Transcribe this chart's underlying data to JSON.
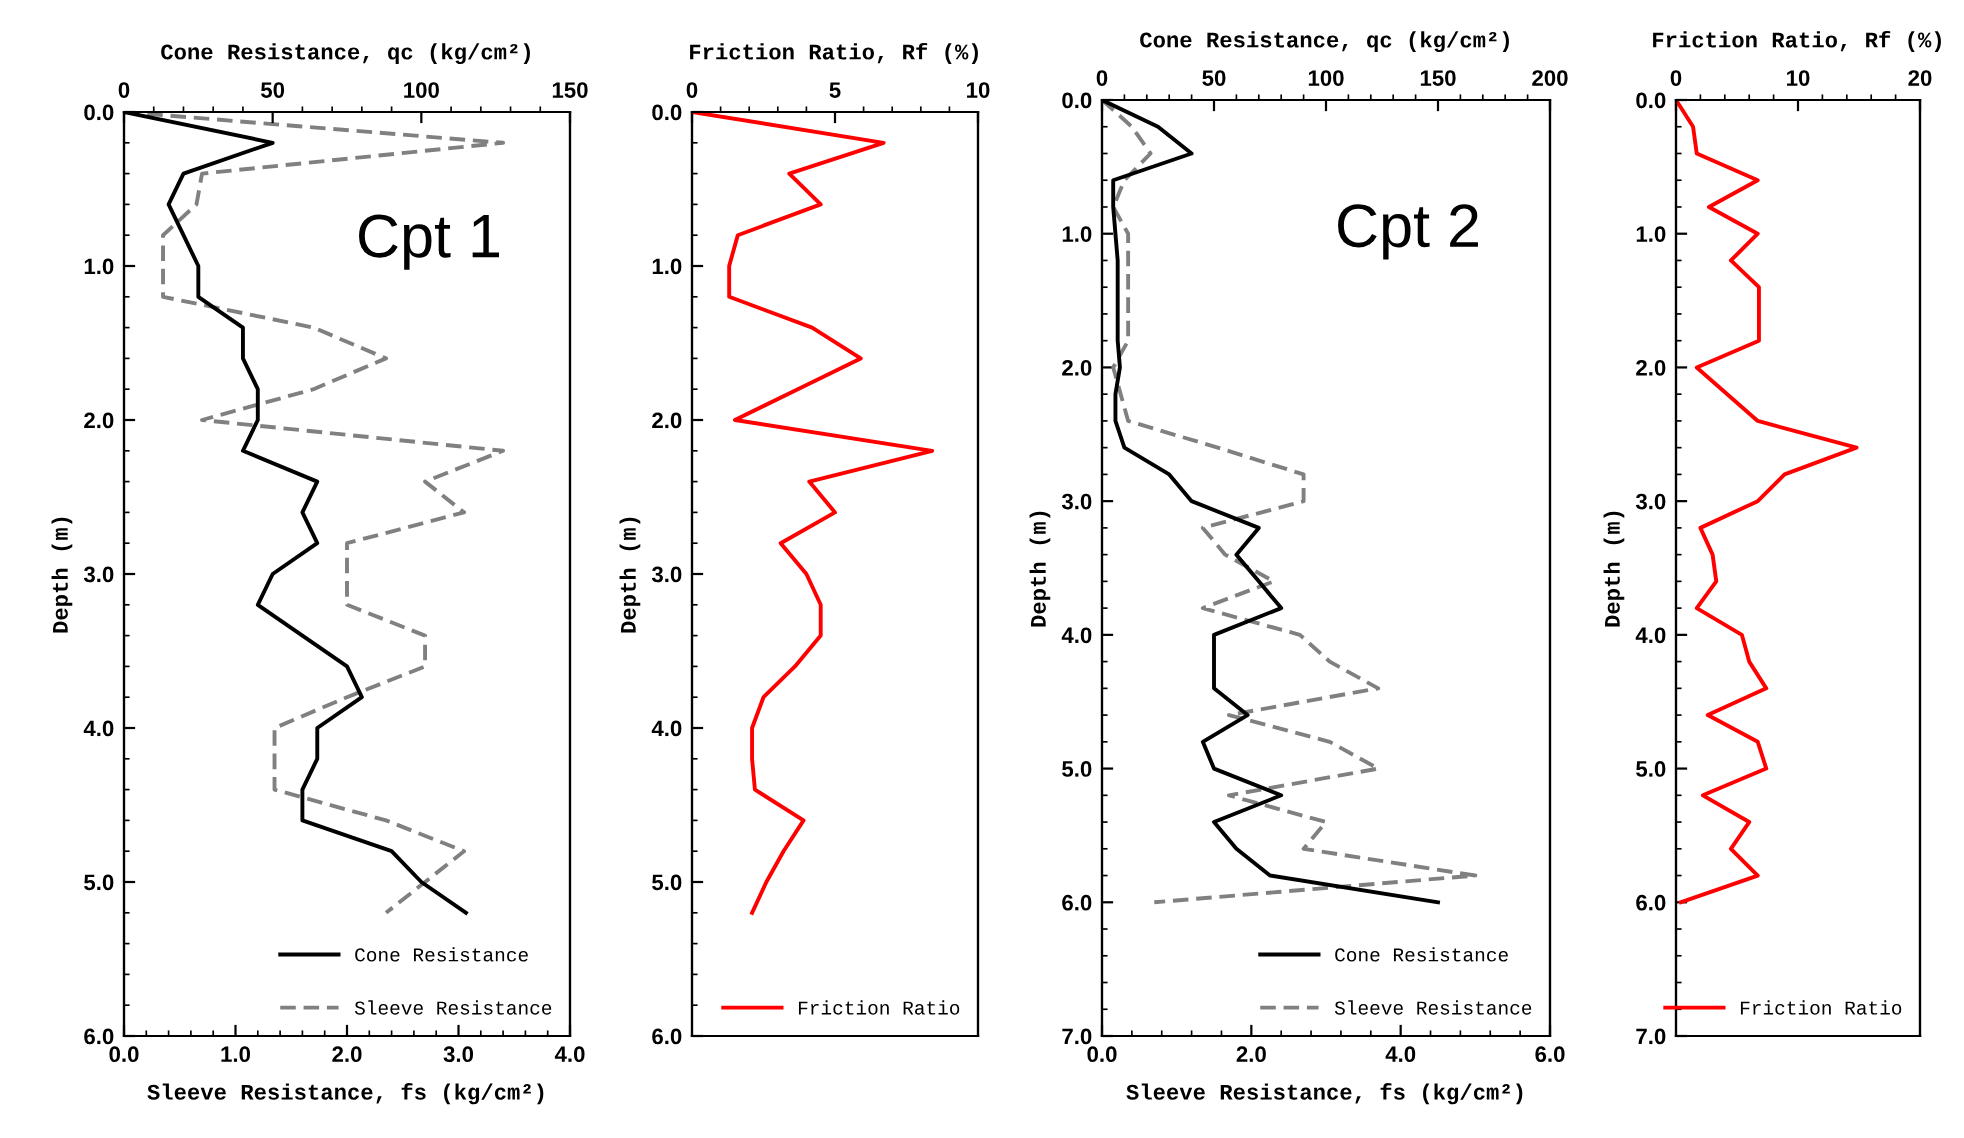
{
  "chart_data": [
    {
      "type": "line",
      "orientation": "horizontal",
      "ylabel": "Depth (m)",
      "xlabel": "Sleeve Resistance, fs (kg/cm²)",
      "x2label": "Cone Resistance, qc (kg/cm²)",
      "annotations": [
        "Cpt 1"
      ],
      "legend": "bottom right",
      "ylim": [
        6,
        0
      ],
      "yticks": [
        {
          "value": 0,
          "label": "0.0"
        },
        {
          "value": 1,
          "label": "1.0"
        },
        {
          "value": 2,
          "label": "2.0"
        },
        {
          "value": 3,
          "label": "3.0"
        },
        {
          "value": 4,
          "label": "4.0"
        },
        {
          "value": 5,
          "label": "5.0"
        },
        {
          "value": 6,
          "label": "6.0"
        }
      ],
      "xlim": [
        0,
        4
      ],
      "xticks": [
        {
          "value": 0,
          "label": "0.0"
        },
        {
          "value": 1,
          "label": "1.0"
        },
        {
          "value": 2,
          "label": "2.0"
        },
        {
          "value": 3,
          "label": "3.0"
        },
        {
          "value": 4,
          "label": "4.0"
        }
      ],
      "x2lim": [
        0,
        150
      ],
      "x2ticks": [
        0,
        50,
        100,
        150
      ],
      "series": [
        {
          "name": "Cone Resistance",
          "color": "#000000",
          "line_style": "solid",
          "axis": "x2",
          "x": [
            0,
            0.2,
            0.4,
            0.6,
            0.8,
            1.0,
            1.2,
            1.4,
            1.6,
            1.8,
            2.0,
            2.2,
            2.4,
            2.6,
            2.8,
            3.0,
            3.2,
            3.4,
            3.6,
            3.8,
            4.0,
            4.2,
            4.4,
            4.6,
            4.8,
            5.0,
            5.2
          ],
          "values": [
            0,
            50,
            20,
            15,
            20,
            25,
            25,
            40,
            40,
            45,
            45,
            40,
            65,
            60,
            65,
            50,
            45,
            60,
            75,
            80,
            65,
            65,
            60,
            60,
            90,
            100,
            115
          ]
        },
        {
          "name": "Sleeve Resistance",
          "color": "#808080",
          "line_style": "dashed",
          "x": [
            0,
            0.2,
            0.4,
            0.6,
            0.8,
            1.0,
            1.2,
            1.4,
            1.6,
            1.8,
            2.0,
            2.2,
            2.4,
            2.6,
            2.8,
            3.0,
            3.2,
            3.4,
            3.6,
            3.8,
            4.0,
            4.2,
            4.4,
            4.6,
            4.8,
            5.0,
            5.2
          ],
          "values": [
            0,
            3.4,
            0.7,
            0.65,
            0.35,
            0.35,
            0.35,
            1.7,
            2.35,
            1.7,
            0.7,
            3.4,
            2.7,
            3.05,
            2.0,
            2.0,
            2.0,
            2.7,
            2.7,
            2.0,
            1.35,
            1.35,
            1.35,
            2.35,
            3.05,
            2.7,
            2.35
          ]
        }
      ]
    },
    {
      "type": "line",
      "orientation": "horizontal",
      "ylabel": "Depth (m)",
      "x2label": "Friction Ratio, Rf (%)",
      "legend": "bottom right",
      "ylim": [
        6,
        0
      ],
      "yticks": [
        {
          "value": 0,
          "label": "0.0"
        },
        {
          "value": 1,
          "label": "1.0"
        },
        {
          "value": 2,
          "label": "2.0"
        },
        {
          "value": 3,
          "label": "3.0"
        },
        {
          "value": 4,
          "label": "4.0"
        },
        {
          "value": 5,
          "label": "5.0"
        },
        {
          "value": 6,
          "label": "6.0"
        }
      ],
      "x2lim": [
        0,
        10
      ],
      "x2ticks": [
        0,
        5,
        10
      ],
      "series": [
        {
          "name": "Friction Ratio",
          "color": "#ff0000",
          "line_style": "solid",
          "axis": "x2",
          "x": [
            0,
            0.2,
            0.4,
            0.6,
            0.8,
            1.0,
            1.2,
            1.4,
            1.6,
            1.8,
            2.0,
            2.2,
            2.4,
            2.6,
            2.8,
            3.0,
            3.2,
            3.4,
            3.6,
            3.8,
            4.0,
            4.2,
            4.4,
            4.6,
            4.8,
            5.0,
            5.2
          ],
          "values": [
            0,
            6.7,
            3.4,
            4.5,
            1.6,
            1.3,
            1.3,
            4.2,
            5.9,
            3.7,
            1.5,
            8.4,
            4.1,
            5.0,
            3.1,
            4.0,
            4.5,
            4.5,
            3.6,
            2.5,
            2.1,
            2.1,
            2.2,
            3.9,
            3.2,
            2.6,
            2.1
          ]
        }
      ]
    },
    {
      "type": "line",
      "orientation": "horizontal",
      "ylabel": "Depth (m)",
      "xlabel": "Sleeve Resistance, fs (kg/cm²)",
      "x2label": "Cone Resistance, qc (kg/cm²)",
      "annotations": [
        "Cpt 2"
      ],
      "legend": "bottom right",
      "ylim": [
        7,
        0
      ],
      "yticks": [
        {
          "value": 0,
          "label": "0.0"
        },
        {
          "value": 1,
          "label": "1.0"
        },
        {
          "value": 2,
          "label": "2.0"
        },
        {
          "value": 3,
          "label": "3.0"
        },
        {
          "value": 4,
          "label": "4.0"
        },
        {
          "value": 5,
          "label": "5.0"
        },
        {
          "value": 6,
          "label": "6.0"
        },
        {
          "value": 7,
          "label": "7.0"
        }
      ],
      "xlim": [
        0,
        6
      ],
      "xticks": [
        {
          "value": 0,
          "label": "0.0"
        },
        {
          "value": 2,
          "label": "2.0"
        },
        {
          "value": 4,
          "label": "4.0"
        },
        {
          "value": 6,
          "label": "6.0"
        }
      ],
      "x2lim": [
        0,
        200
      ],
      "x2ticks": [
        0,
        50,
        100,
        150,
        200
      ],
      "series": [
        {
          "name": "Cone Resistance",
          "color": "#000000",
          "line_style": "solid",
          "axis": "x2",
          "x": [
            0,
            0.2,
            0.4,
            0.6,
            0.8,
            1.0,
            1.2,
            1.4,
            1.6,
            1.8,
            2.0,
            2.2,
            2.4,
            2.6,
            2.8,
            3.0,
            3.2,
            3.4,
            3.6,
            3.8,
            4.0,
            4.2,
            4.4,
            4.6,
            4.8,
            5.0,
            5.2,
            5.4,
            5.6,
            5.8,
            6.0
          ],
          "values": [
            0,
            25,
            40,
            5,
            5,
            6,
            7,
            7,
            7,
            7,
            8,
            6,
            6,
            10,
            30,
            40,
            70,
            60,
            70,
            80,
            50,
            50,
            50,
            65,
            45,
            50,
            80,
            50,
            60,
            75,
            150
          ]
        },
        {
          "name": "Sleeve Resistance",
          "color": "#808080",
          "line_style": "dashed",
          "x": [
            0,
            0.2,
            0.4,
            0.6,
            0.8,
            1.0,
            1.2,
            1.4,
            1.6,
            1.8,
            2.0,
            2.2,
            2.4,
            2.6,
            2.8,
            3.0,
            3.2,
            3.4,
            3.6,
            3.8,
            4.0,
            4.2,
            4.4,
            4.6,
            4.8,
            5.0,
            5.2,
            5.4,
            5.6,
            5.8,
            6.0
          ],
          "values": [
            0,
            0.4,
            0.65,
            0.3,
            0.15,
            0.35,
            0.35,
            0.35,
            0.35,
            0.35,
            0.15,
            0.25,
            0.35,
            1.55,
            2.7,
            2.7,
            1.35,
            1.65,
            2.3,
            1.35,
            2.65,
            3.05,
            3.7,
            1.7,
            3.05,
            3.7,
            1.7,
            3.0,
            2.7,
            5.0,
            0.7
          ]
        }
      ]
    },
    {
      "type": "line",
      "orientation": "horizontal",
      "ylabel": "Depth (m)",
      "x2label": "Friction Ratio, Rf (%)",
      "legend": "bottom right",
      "ylim": [
        7,
        0
      ],
      "yticks": [
        {
          "value": 0,
          "label": "0.0"
        },
        {
          "value": 1,
          "label": "1.0"
        },
        {
          "value": 2,
          "label": "2.0"
        },
        {
          "value": 3,
          "label": "3.0"
        },
        {
          "value": 4,
          "label": "4.0"
        },
        {
          "value": 5,
          "label": "5.0"
        },
        {
          "value": 6,
          "label": "6.0"
        },
        {
          "value": 7,
          "label": "7.0"
        }
      ],
      "x2lim": [
        0,
        20
      ],
      "x2ticks": [
        0,
        10,
        20
      ],
      "series": [
        {
          "name": "Friction Ratio",
          "color": "#ff0000",
          "line_style": "solid",
          "axis": "x2",
          "x": [
            0,
            0.2,
            0.4,
            0.6,
            0.8,
            1.0,
            1.2,
            1.4,
            1.6,
            1.8,
            2.0,
            2.2,
            2.4,
            2.6,
            2.8,
            3.0,
            3.2,
            3.4,
            3.6,
            3.8,
            4.0,
            4.2,
            4.4,
            4.6,
            4.8,
            5.0,
            5.2,
            5.4,
            5.6,
            5.8,
            6.0
          ],
          "values": [
            0,
            1.4,
            1.7,
            6.7,
            2.7,
            6.7,
            4.5,
            6.8,
            6.8,
            6.8,
            1.7,
            4.2,
            6.7,
            14.8,
            8.9,
            6.7,
            2.0,
            3.0,
            3.3,
            1.7,
            5.4,
            6.0,
            7.4,
            2.6,
            6.7,
            7.4,
            2.2,
            6.0,
            4.5,
            6.7,
            0.4
          ]
        }
      ]
    }
  ]
}
